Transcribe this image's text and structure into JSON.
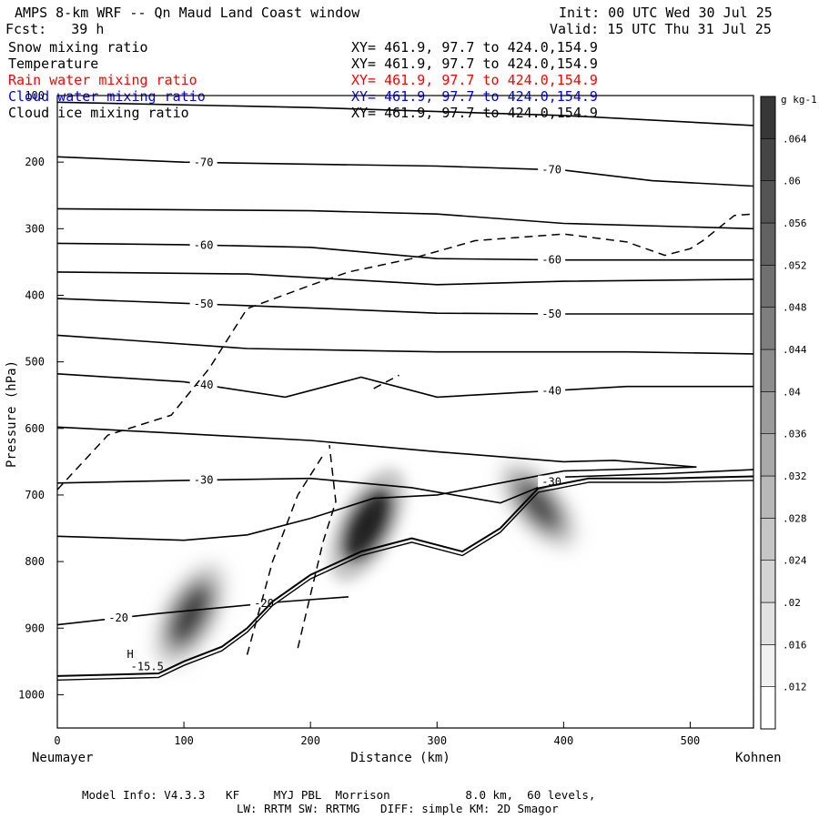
{
  "header": {
    "title": "AMPS 8-km WRF -- Qn Maud Land Coast window",
    "init": "Init: 00 UTC Wed 30 Jul 25",
    "fcst": "Fcst:   39 h",
    "valid": "Valid: 15 UTC Thu 31 Jul 25"
  },
  "fields": [
    {
      "name": "Snow mixing ratio",
      "xy": "XY= 461.9, 97.7 to 424.0,154.9",
      "color": "#000000"
    },
    {
      "name": "Temperature",
      "xy": "XY= 461.9, 97.7 to 424.0,154.9",
      "color": "#000000"
    },
    {
      "name": "Rain water mixing ratio",
      "xy": "XY= 461.9, 97.7 to 424.0,154.9",
      "color": "#ff0000"
    },
    {
      "name": "Cloud water mixing ratio",
      "xy": "XY= 461.9, 97.7 to 424.0,154.9",
      "color": "#0000ff"
    },
    {
      "name": "Cloud ice mixing ratio",
      "xy": "XY= 461.9, 97.7 to 424.0,154.9",
      "color": "#000000"
    }
  ],
  "footer": {
    "line1": "Model Info: V4.3.3   KF     MYJ PBL  Morrison           8.0 km,  60 levels,",
    "line2": "LW: RRTM SW: RRTMG   DIFF: simple KM: 2D Smagor"
  },
  "chart_data": {
    "type": "contour cross-section",
    "xlabel": "Distance (km)",
    "ylabel": "Pressure (hPa)",
    "x_endpoint_left": "Neumayer",
    "x_endpoint_right": "Kohnen",
    "xlim": [
      0,
      550
    ],
    "ylim": [
      1050,
      100
    ],
    "x_ticks": [
      0,
      100,
      200,
      300,
      400,
      500
    ],
    "y_ticks": [
      100,
      200,
      300,
      400,
      500,
      600,
      700,
      800,
      900,
      1000
    ],
    "colorbar": {
      "unit": "g kg-1",
      "levels": [
        0.012,
        0.016,
        0.02,
        0.024,
        0.028,
        0.032,
        0.036,
        0.04,
        0.044,
        0.048,
        0.052,
        0.056,
        0.06,
        0.064
      ],
      "tick_labels": [
        ".012",
        ".016",
        ".02",
        ".024",
        ".028",
        ".032",
        ".036",
        ".04",
        ".044",
        ".048",
        ".052",
        ".056",
        ".06",
        ".064"
      ]
    },
    "isotherms": [
      {
        "label": "-70",
        "pts": [
          [
            0,
            192
          ],
          [
            100,
            200
          ],
          [
            200,
            203
          ],
          [
            300,
            206
          ],
          [
            400,
            212
          ],
          [
            470,
            228
          ],
          [
            550,
            236
          ]
        ]
      },
      {
        "label": "-60",
        "pts": [
          [
            0,
            322
          ],
          [
            100,
            324
          ],
          [
            200,
            328
          ],
          [
            300,
            345
          ],
          [
            400,
            347
          ],
          [
            550,
            347
          ]
        ]
      },
      {
        "label": "-50",
        "pts": [
          [
            0,
            405
          ],
          [
            100,
            412
          ],
          [
            200,
            419
          ],
          [
            300,
            427
          ],
          [
            400,
            428
          ],
          [
            550,
            428
          ]
        ]
      },
      {
        "label": "-40",
        "pts": [
          [
            0,
            518
          ],
          [
            100,
            530
          ],
          [
            180,
            553
          ],
          [
            240,
            523
          ],
          [
            300,
            553
          ],
          [
            450,
            537
          ],
          [
            550,
            537
          ]
        ]
      },
      {
        "label": "-30",
        "pts": [
          [
            0,
            682
          ],
          [
            100,
            678
          ],
          [
            200,
            675
          ],
          [
            280,
            689
          ],
          [
            350,
            712
          ],
          [
            400,
            673
          ],
          [
            480,
            668
          ],
          [
            550,
            662
          ]
        ]
      },
      {
        "label": "-20",
        "pts": [
          [
            0,
            895
          ],
          [
            80,
            878
          ],
          [
            180,
            860
          ],
          [
            230,
            853
          ]
        ]
      }
    ],
    "unlabeled_temperature_contours": [
      {
        "pts": [
          [
            0,
            110
          ],
          [
            200,
            118
          ],
          [
            400,
            130
          ],
          [
            550,
            145
          ]
        ]
      },
      {
        "pts": [
          [
            0,
            270
          ],
          [
            200,
            273
          ],
          [
            300,
            278
          ],
          [
            400,
            292
          ],
          [
            550,
            300
          ]
        ]
      },
      {
        "pts": [
          [
            0,
            365
          ],
          [
            150,
            368
          ],
          [
            300,
            384
          ],
          [
            400,
            379
          ],
          [
            550,
            376
          ]
        ]
      },
      {
        "pts": [
          [
            0,
            460
          ],
          [
            150,
            480
          ],
          [
            300,
            485
          ],
          [
            450,
            485
          ],
          [
            550,
            488
          ]
        ]
      },
      {
        "pts": [
          [
            0,
            598
          ],
          [
            100,
            608
          ],
          [
            200,
            618
          ],
          [
            300,
            635
          ],
          [
            400,
            650
          ],
          [
            440,
            648
          ],
          [
            505,
            658
          ],
          [
            400,
            664
          ],
          [
            300,
            700
          ],
          [
            250,
            705
          ],
          [
            200,
            735
          ],
          [
            150,
            760
          ],
          [
            100,
            768
          ],
          [
            0,
            762
          ]
        ]
      }
    ],
    "cloud_ice_boundary": [
      {
        "pts": [
          [
            0,
            692
          ],
          [
            40,
            610
          ],
          [
            90,
            580
          ],
          [
            120,
            510
          ],
          [
            150,
            420
          ],
          [
            200,
            385
          ],
          [
            230,
            365
          ],
          [
            280,
            345
          ],
          [
            330,
            318
          ],
          [
            400,
            308
          ],
          [
            450,
            320
          ],
          [
            480,
            340
          ],
          [
            500,
            330
          ],
          [
            510,
            318
          ],
          [
            535,
            280
          ],
          [
            550,
            278
          ]
        ]
      },
      {
        "pts": [
          [
            150,
            940
          ],
          [
            170,
            800
          ],
          [
            190,
            700
          ],
          [
            210,
            640
          ]
        ]
      },
      {
        "pts": [
          [
            190,
            930
          ],
          [
            210,
            770
          ],
          [
            220,
            710
          ],
          [
            215,
            625
          ]
        ]
      },
      {
        "pts": [
          [
            250,
            540
          ],
          [
            270,
            520
          ]
        ]
      }
    ],
    "shaded_maxima": [
      {
        "x": 105,
        "p": 880,
        "value": 0.036
      },
      {
        "x": 245,
        "p": 745,
        "value": 0.056
      },
      {
        "x": 380,
        "p": 715,
        "value": 0.024
      }
    ],
    "annotations": [
      {
        "text": "H",
        "x": 55,
        "p": 945
      },
      {
        "text": "-15.5",
        "x": 58,
        "p": 963
      }
    ],
    "terrain_surface": [
      [
        0,
        972
      ],
      [
        80,
        968
      ],
      [
        100,
        950
      ],
      [
        130,
        928
      ],
      [
        150,
        900
      ],
      [
        170,
        860
      ],
      [
        200,
        820
      ],
      [
        240,
        785
      ],
      [
        280,
        765
      ],
      [
        300,
        775
      ],
      [
        320,
        785
      ],
      [
        350,
        750
      ],
      [
        380,
        690
      ],
      [
        420,
        675
      ],
      [
        480,
        675
      ],
      [
        550,
        672
      ]
    ]
  }
}
